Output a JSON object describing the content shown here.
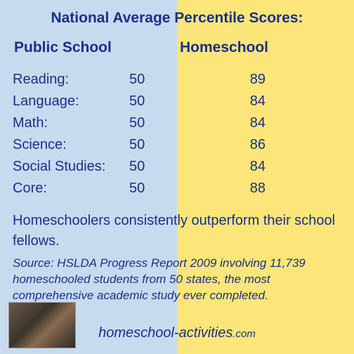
{
  "title": "National Average Percentile Scores:",
  "headers": {
    "public": "Public School",
    "home": "Homeschool"
  },
  "rows": [
    {
      "label": "Reading:",
      "public": "50",
      "home": "89"
    },
    {
      "label": "Language:",
      "public": "50",
      "home": "84"
    },
    {
      "label": "Math:",
      "public": "50",
      "home": "84"
    },
    {
      "label": "Science:",
      "public": "50",
      "home": "86"
    },
    {
      "label": "Social Studies:",
      "public": "50",
      "home": "84"
    },
    {
      "label": "Core:",
      "public": "50",
      "home": "88"
    }
  ],
  "summary": "Homeschoolers consistently outperform their school fellows.",
  "source": "Source:  HSLDA Progress Report 2009 involving 11,739 homeschooled students from 50 states, the most comprehensive academic study ever completed.",
  "url_main": "homeschool-activities",
  "url_suffix": ".com",
  "colors": {
    "bg_left": "#c7dbef",
    "bg_right": "#fce679",
    "text": "#1a2f8a"
  },
  "fontsize": {
    "title": 21,
    "header": 21,
    "row": 20,
    "summary": 20,
    "source": 17,
    "url": 20
  }
}
